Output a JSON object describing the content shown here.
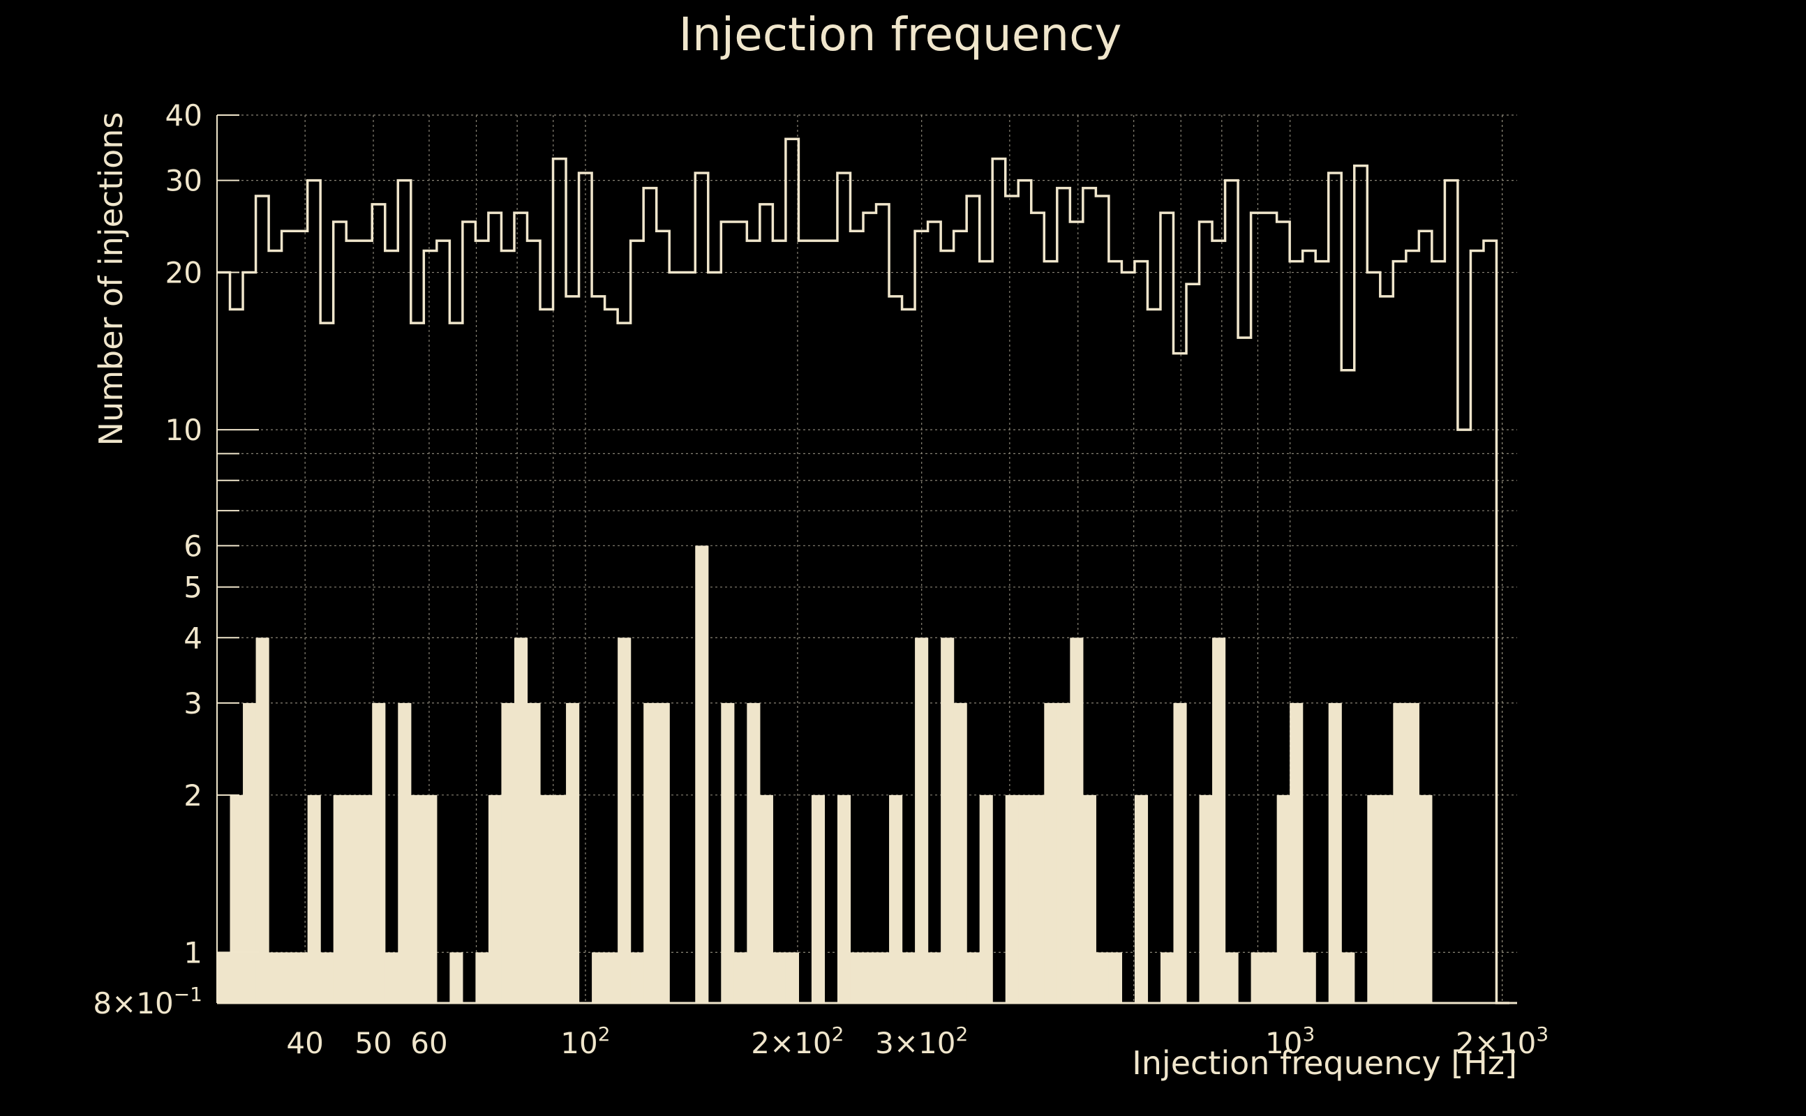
{
  "chart_data": {
    "type": "bar",
    "title": "Injection frequency",
    "xlabel": "Injection frequency [Hz]",
    "ylabel": "Number of injections",
    "x_scale": "log",
    "y_scale": "log",
    "xlim": [
      30,
      2100
    ],
    "ylim": [
      0.8,
      40
    ],
    "grid": true,
    "x_ticks": [
      {
        "value": 40,
        "base": "40",
        "sup": ""
      },
      {
        "value": 50,
        "base": "50",
        "sup": ""
      },
      {
        "value": 60,
        "base": "60",
        "sup": ""
      },
      {
        "value": 100,
        "base": "10",
        "sup": "2"
      },
      {
        "value": 200,
        "base": "2×10",
        "sup": "2"
      },
      {
        "value": 300,
        "base": "3×10",
        "sup": "2"
      },
      {
        "value": 1000,
        "base": "10",
        "sup": "3"
      },
      {
        "value": 2000,
        "base": "2×10",
        "sup": "3"
      }
    ],
    "y_ticks": [
      {
        "value": 0.8,
        "label": "8×10",
        "sup": "−1"
      },
      {
        "value": 1,
        "label": "1",
        "sup": ""
      },
      {
        "value": 2,
        "label": "2",
        "sup": ""
      },
      {
        "value": 3,
        "label": "3",
        "sup": ""
      },
      {
        "value": 4,
        "label": "4",
        "sup": ""
      },
      {
        "value": 5,
        "label": "5",
        "sup": ""
      },
      {
        "value": 6,
        "label": "6",
        "sup": ""
      },
      {
        "value": 10,
        "label": "10",
        "sup": ""
      },
      {
        "value": 20,
        "label": "20",
        "sup": ""
      },
      {
        "value": 30,
        "label": "30",
        "sup": ""
      },
      {
        "value": 40,
        "label": "40",
        "sup": ""
      }
    ],
    "bin_edges_range": [
      30,
      2048
    ],
    "n_bins": 100,
    "series": [
      {
        "style": "step-outline",
        "values": [
          20,
          17,
          20,
          28,
          22,
          24,
          24,
          30,
          16,
          25,
          23,
          23,
          27,
          22,
          30,
          16,
          22,
          23,
          16,
          25,
          23,
          26,
          22,
          26,
          23,
          17,
          33,
          18,
          31,
          18,
          17,
          16,
          23,
          29,
          24,
          20,
          20,
          31,
          20,
          25,
          25,
          23,
          27,
          23,
          36,
          23,
          23,
          23,
          31,
          24,
          26,
          27,
          18,
          17,
          24,
          25,
          22,
          24,
          28,
          21,
          33,
          28,
          30,
          26,
          21,
          29,
          25,
          29,
          28,
          21,
          20,
          21,
          17,
          26,
          14,
          19,
          25,
          23,
          30,
          15,
          26,
          26,
          25,
          21,
          22,
          21,
          31,
          13,
          32,
          20,
          18,
          21,
          22,
          24,
          21,
          30,
          10,
          22,
          23,
          0.8
        ]
      },
      {
        "style": "filled",
        "values": [
          1,
          2,
          3,
          4,
          1,
          1,
          1,
          2,
          1,
          2,
          2,
          2,
          3,
          1,
          3,
          2,
          2,
          0,
          1,
          0,
          1,
          2,
          3,
          4,
          3,
          2,
          2,
          3,
          0,
          1,
          1,
          4,
          1,
          3,
          3,
          0,
          0,
          6,
          0,
          3,
          1,
          3,
          2,
          1,
          1,
          0,
          2,
          0,
          2,
          1,
          1,
          1,
          2,
          1,
          4,
          1,
          4,
          3,
          1,
          2,
          0,
          2,
          2,
          2,
          3,
          3,
          4,
          2,
          1,
          1,
          0,
          2,
          0,
          1,
          3,
          0,
          2,
          4,
          1,
          0,
          1,
          1,
          2,
          3,
          1,
          0,
          3,
          1,
          0,
          2,
          2,
          3,
          3,
          2,
          0,
          0,
          0,
          0,
          0,
          0
        ]
      }
    ],
    "colors": {
      "background": "#000000",
      "foreground": "#f0e6cc",
      "fill": "#efe5cb",
      "grid": "#8a8577"
    }
  }
}
